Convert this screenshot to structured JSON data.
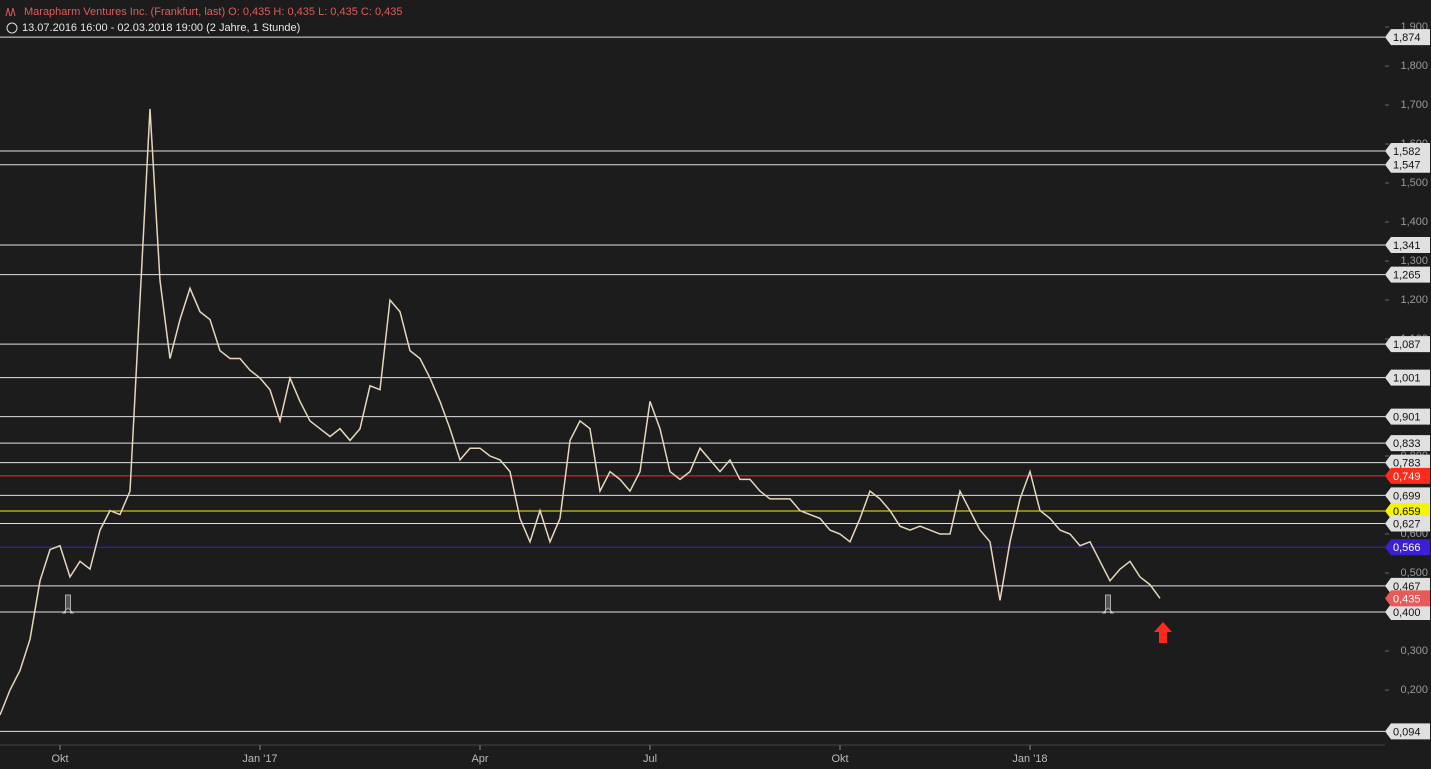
{
  "chart_data": {
    "type": "line",
    "title": "Marapharm Ventures Inc. (Frankfurt, last)  O: 0,435  H: 0,435  L: 0,435  C: 0,435",
    "subtitle": "13.07.2016 16:00 - 02.03.2018 19:00   (2 Jahre, 1 Stunde)",
    "categories": [
      null,
      null,
      null,
      null,
      null,
      null,
      "Okt",
      null,
      null,
      null,
      null,
      null,
      null,
      null,
      null,
      null,
      null,
      null,
      null,
      null,
      null,
      null,
      null,
      null,
      null,
      null,
      "Jan '17",
      null,
      null,
      null,
      null,
      null,
      null,
      null,
      null,
      null,
      null,
      null,
      null,
      null,
      null,
      null,
      null,
      null,
      null,
      null,
      null,
      null,
      "Apr",
      null,
      null,
      null,
      null,
      null,
      null,
      null,
      null,
      null,
      null,
      null,
      null,
      null,
      null,
      null,
      null,
      "Jul",
      null,
      null,
      null,
      null,
      null,
      null,
      null,
      null,
      null,
      null,
      null,
      null,
      null,
      null,
      null,
      null,
      null,
      null,
      "Okt",
      null,
      null,
      null,
      null,
      null,
      null,
      null,
      null,
      null,
      null,
      null,
      null,
      null,
      null,
      null,
      null,
      null,
      null,
      "Jan '18",
      null,
      null,
      null,
      null,
      null,
      null,
      null,
      null,
      null,
      null,
      null,
      null,
      null
    ],
    "series": [
      {
        "name": "Marapharm Ventures Inc.",
        "color": "#e6d6bc",
        "values": [
          0.136,
          0.2,
          0.25,
          0.33,
          0.48,
          0.56,
          0.57,
          0.49,
          0.53,
          0.51,
          0.61,
          0.66,
          0.65,
          0.71,
          1.2,
          1.69,
          1.25,
          1.05,
          1.15,
          1.23,
          1.17,
          1.15,
          1.07,
          1.05,
          1.05,
          1.02,
          1.0,
          0.97,
          0.89,
          1.0,
          0.94,
          0.89,
          0.87,
          0.85,
          0.87,
          0.84,
          0.87,
          0.98,
          0.97,
          1.2,
          1.17,
          1.07,
          1.05,
          1.0,
          0.94,
          0.87,
          0.79,
          0.82,
          0.82,
          0.8,
          0.79,
          0.76,
          0.64,
          0.58,
          0.66,
          0.58,
          0.64,
          0.84,
          0.89,
          0.87,
          0.71,
          0.76,
          0.74,
          0.71,
          0.76,
          0.94,
          0.87,
          0.76,
          0.74,
          0.76,
          0.82,
          0.79,
          0.76,
          0.79,
          0.74,
          0.74,
          0.71,
          0.69,
          0.69,
          0.69,
          0.66,
          0.65,
          0.64,
          0.61,
          0.6,
          0.58,
          0.64,
          0.71,
          0.69,
          0.66,
          0.62,
          0.61,
          0.62,
          0.61,
          0.6,
          0.6,
          0.71,
          0.66,
          0.61,
          0.58,
          0.43,
          0.58,
          0.69,
          0.76,
          0.66,
          0.64,
          0.61,
          0.6,
          0.57,
          0.58,
          0.53,
          0.48,
          0.51,
          0.53,
          0.49,
          0.47,
          0.435
        ]
      }
    ],
    "ylim": [
      0.059,
      1.918
    ],
    "yticks": [
      {
        "value": 0.2,
        "label": "0,200"
      },
      {
        "value": 0.3,
        "label": "0,300"
      },
      {
        "value": 0.4,
        "label": "0,400"
      },
      {
        "value": 0.5,
        "label": "0,500"
      },
      {
        "value": 0.6,
        "label": "0,600"
      },
      {
        "value": 0.7,
        "label": "0,700"
      },
      {
        "value": 0.8,
        "label": "0,800"
      },
      {
        "value": 0.9,
        "label": "0,900"
      },
      {
        "value": 1.0,
        "label": "1,000"
      },
      {
        "value": 1.1,
        "label": "1,100"
      },
      {
        "value": 1.2,
        "label": "1,200"
      },
      {
        "value": 1.3,
        "label": "1,300"
      },
      {
        "value": 1.4,
        "label": "1,400"
      },
      {
        "value": 1.5,
        "label": "1,500"
      },
      {
        "value": 1.6,
        "label": "1,600"
      },
      {
        "value": 1.7,
        "label": "1,700"
      },
      {
        "value": 1.8,
        "label": "1,800"
      },
      {
        "value": 1.9,
        "label": "1,900"
      }
    ],
    "levels": [
      {
        "value": 1.874,
        "label": "1,874",
        "color": "#e0e0e0"
      },
      {
        "value": 1.582,
        "label": "1,582",
        "color": "#e0e0e0"
      },
      {
        "value": 1.547,
        "label": "1,547",
        "color": "#e0e0e0"
      },
      {
        "value": 1.341,
        "label": "1,341",
        "color": "#e0e0e0"
      },
      {
        "value": 1.265,
        "label": "1,265",
        "color": "#e0e0e0"
      },
      {
        "value": 1.087,
        "label": "1,087",
        "color": "#e0e0e0"
      },
      {
        "value": 1.001,
        "label": "1,001",
        "color": "#e0e0e0"
      },
      {
        "value": 0.901,
        "label": "0,901",
        "color": "#e0e0e0"
      },
      {
        "value": 0.833,
        "label": "0,833",
        "color": "#e0e0e0"
      },
      {
        "value": 0.783,
        "label": "0,783",
        "color": "#e0e0e0"
      },
      {
        "value": 0.749,
        "label": "0,749",
        "color": "#ff2a1a"
      },
      {
        "value": 0.699,
        "label": "0,699",
        "color": "#e0e0e0"
      },
      {
        "value": 0.659,
        "label": "0,659",
        "color": "#f4f400"
      },
      {
        "value": 0.627,
        "label": "0,627",
        "color": "#e0e0e0"
      },
      {
        "value": 0.566,
        "label": "0,566",
        "color": "#3a1fd6"
      },
      {
        "value": 0.467,
        "label": "0,467",
        "color": "#e0e0e0"
      },
      {
        "value": 0.4,
        "label": "0,400",
        "color": "#e0e0e0"
      },
      {
        "value": 0.094,
        "label": "0,094",
        "color": "#e0e0e0"
      }
    ],
    "last": {
      "value": 0.435,
      "label": "0,435",
      "color": "#e85a5a"
    }
  }
}
